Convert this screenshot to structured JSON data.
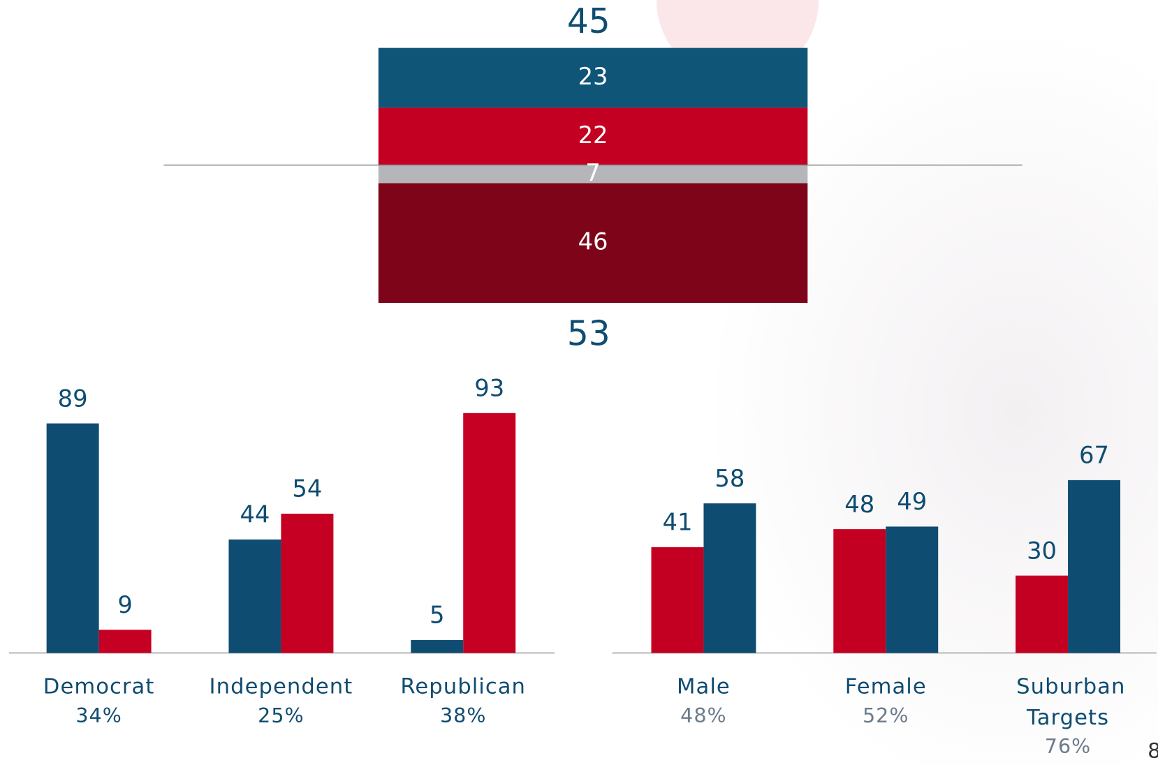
{
  "page_number": "8",
  "chart_data": [
    {
      "type": "stacked-bar",
      "top_total": 45,
      "bottom_total": 53,
      "values": [
        23,
        22,
        7,
        46
      ],
      "colors": [
        "#0f5578",
        "#c40022",
        "#b5b6ba",
        "#7e0519"
      ]
    },
    {
      "type": "bar",
      "categories": [
        "Democrat",
        "Independent",
        "Republican"
      ],
      "category_subtitles": [
        "34%",
        "25%",
        "38%"
      ],
      "series": [
        {
          "color": "#0f4c71",
          "values": [
            89,
            44,
            5
          ]
        },
        {
          "color": "#c50023",
          "values": [
            9,
            54,
            93
          ]
        }
      ]
    },
    {
      "type": "bar",
      "categories": [
        "Male",
        "Female",
        "Suburban Targets"
      ],
      "category_subtitles": [
        "48%",
        "52%",
        "76%"
      ],
      "series": [
        {
          "color": "#c40022",
          "values": [
            41,
            48,
            30
          ]
        },
        {
          "color": "#0f4c71",
          "values": [
            58,
            49,
            67
          ]
        }
      ]
    }
  ]
}
